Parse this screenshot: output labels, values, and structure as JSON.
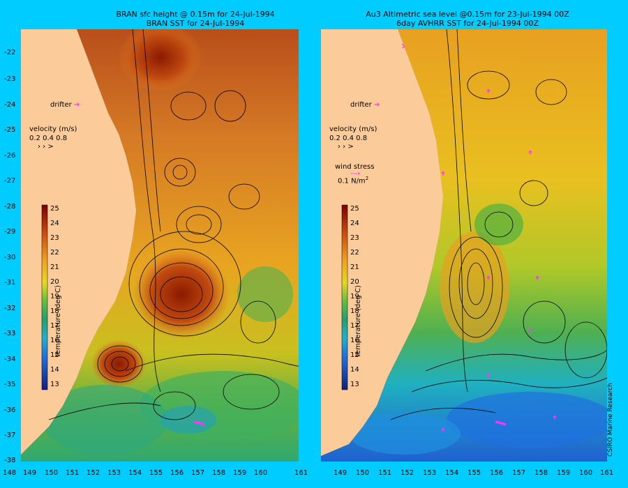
{
  "left_panel": {
    "title_lines": [
      "BRAN sfc height @ 0.15m  for 24-Jul-1994",
      "BRAN SST for 24-Jul-1994"
    ],
    "drifter_label": "drifter",
    "velocity_label": "velocity (m/s)",
    "velocity_scale": "0.2 0.4 0.8"
  },
  "right_panel": {
    "title_lines": [
      "Au3 Altimetric sea level  @0.15m  for 23-Jul-1994 00Z",
      "6day AVHRR SST for 24-Jul-1994 00Z"
    ],
    "drifter_label": "drifter",
    "velocity_label": "velocity (m/s)",
    "velocity_scale": "0.2 0.4 0.8",
    "wind_label": "wind stress",
    "wind_value": "0.1 N/m",
    "wind_unit_exp": "2"
  },
  "colorbar": {
    "label": "temperature (deg C)",
    "ticks": [
      "25",
      "24",
      "23",
      "22",
      "21",
      "20",
      "19",
      "18",
      "17",
      "16",
      "15",
      "14",
      "13"
    ]
  },
  "axes": {
    "y_ticks": [
      "-22",
      "-23",
      "-24",
      "-25",
      "-26",
      "-27",
      "-28",
      "-29",
      "-30",
      "-31",
      "-32",
      "-33",
      "-34",
      "-35",
      "-36",
      "-37",
      "-38"
    ],
    "x_ticks_left": [
      "148",
      "149",
      "150",
      "151",
      "152",
      "153",
      "154",
      "155",
      "156",
      "157",
      "158",
      "159",
      "160",
      "161"
    ],
    "x_ticks_right": [
      "149",
      "150",
      "151",
      "152",
      "153",
      "154",
      "155",
      "156",
      "157",
      "158",
      "159",
      "160",
      "161"
    ]
  },
  "credit": "CSIRO Marine Research",
  "colors": {
    "background": "#00ccff",
    "land": "#fccb9a",
    "drifter": "#ff33ff",
    "contour": "#000000"
  }
}
